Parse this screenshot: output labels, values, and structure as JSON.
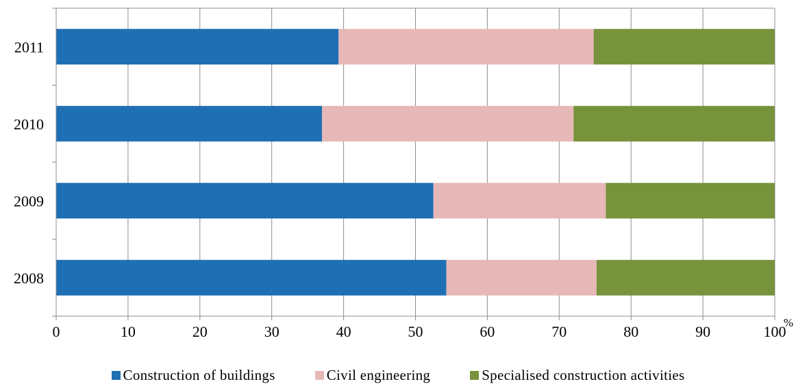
{
  "chart_data": {
    "type": "bar",
    "orientation": "horizontal",
    "stacked": true,
    "categories": [
      "2011",
      "2010",
      "2009",
      "2008"
    ],
    "series": [
      {
        "name": "Construction of buildings",
        "color": "#1F6FB4",
        "values": [
          39.3,
          37.0,
          52.5,
          54.3
        ]
      },
      {
        "name": "Civil engineering",
        "color": "#E6B8B7",
        "values": [
          35.5,
          35.0,
          24.0,
          20.9
        ]
      },
      {
        "name": "Specialised construction activities",
        "color": "#77933C",
        "values": [
          25.2,
          28.0,
          23.5,
          24.8
        ]
      }
    ],
    "x_ticks": [
      0,
      10,
      20,
      30,
      40,
      50,
      60,
      70,
      80,
      90,
      100
    ],
    "xlim": [
      0,
      100
    ],
    "xlabel": "%",
    "grid": true,
    "legend_position": "bottom"
  }
}
